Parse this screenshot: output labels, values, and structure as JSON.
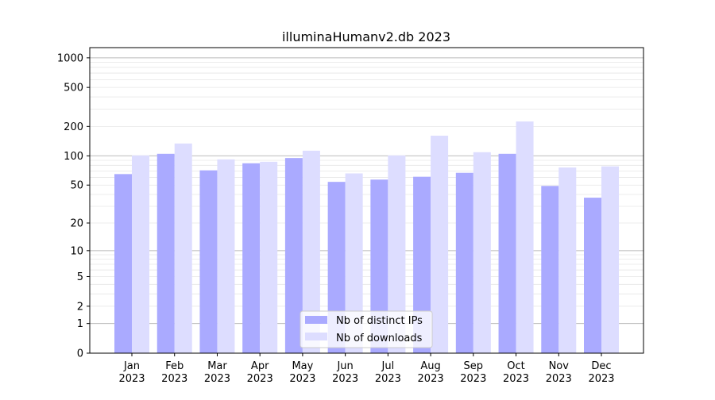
{
  "chart_data": {
    "type": "bar",
    "title": "illuminaHumanv2.db 2023",
    "xlabel": "",
    "ylabel": "",
    "y_scale": "log(1+x)",
    "ylim": [
      0,
      1270
    ],
    "grid": "horizontal",
    "legend_position": "bottom-center",
    "categories": [
      "Jan\n2023",
      "Feb\n2023",
      "Mar\n2023",
      "Apr\n2023",
      "May\n2023",
      "Jun\n2023",
      "Jul\n2023",
      "Aug\n2023",
      "Sep\n2023",
      "Oct\n2023",
      "Nov\n2023",
      "Dec\n2023"
    ],
    "y_ticks": [
      0,
      1,
      2,
      5,
      10,
      20,
      50,
      100,
      200,
      500,
      1000
    ],
    "series": [
      {
        "name": "Nb of distinct IPs",
        "color": "#aaaaff",
        "values": [
          65,
          105,
          71,
          84,
          95,
          54,
          57,
          61,
          67,
          105,
          49,
          37
        ]
      },
      {
        "name": "Nb of downloads",
        "color": "#ddddff",
        "values": [
          101,
          134,
          92,
          87,
          113,
          66,
          101,
          161,
          109,
          225,
          76,
          78
        ]
      }
    ]
  }
}
